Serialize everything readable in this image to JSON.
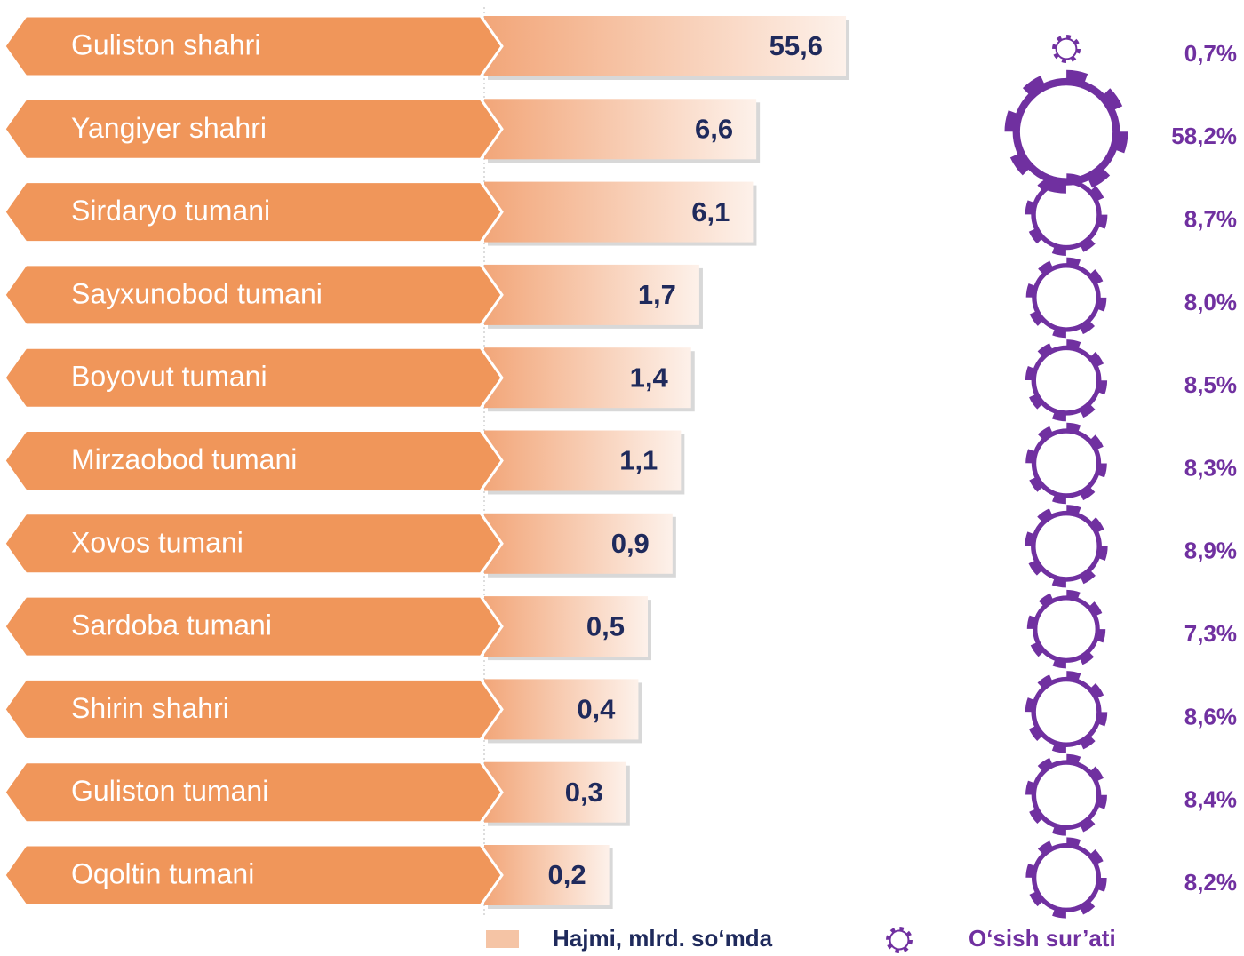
{
  "chart_data": {
    "type": "bar",
    "categories": [
      "Guliston shahri",
      "Yangiyer shahri",
      "Sirdaryo tumani",
      "Sayxunobod tumani",
      "Boyovut tumani",
      "Mirzaobod tumani",
      "Xovos tumani",
      "Sardoba tumani",
      "Shirin shahri",
      "Guliston tumani",
      "Oqoltin tumani"
    ],
    "series": [
      {
        "name": "Hajmi, mlrd. so‘mda",
        "color": "#f0965a",
        "values": [
          55.6,
          6.6,
          6.1,
          1.7,
          1.4,
          1.1,
          0.9,
          0.5,
          0.4,
          0.3,
          0.2
        ],
        "value_labels": [
          "55,6",
          "6,6",
          "6,1",
          "1,7",
          "1,4",
          "1,1",
          "0,9",
          "0,5",
          "0,4",
          "0,3",
          "0,2"
        ]
      },
      {
        "name": "O‘sish sur’ati",
        "color": "#7030a0",
        "values": [
          0.7,
          58.2,
          8.7,
          8.0,
          8.5,
          8.3,
          8.9,
          7.3,
          8.6,
          8.4,
          8.2
        ],
        "value_labels": [
          "0,7%",
          "58,2%",
          "8,7%",
          "8,0%",
          "8,5%",
          "8,3%",
          "8,9%",
          "7,3%",
          "8,6%",
          "8,4%",
          "8,2%"
        ]
      }
    ],
    "xscale": "log",
    "xlim": [
      0.05,
      100
    ]
  }
}
